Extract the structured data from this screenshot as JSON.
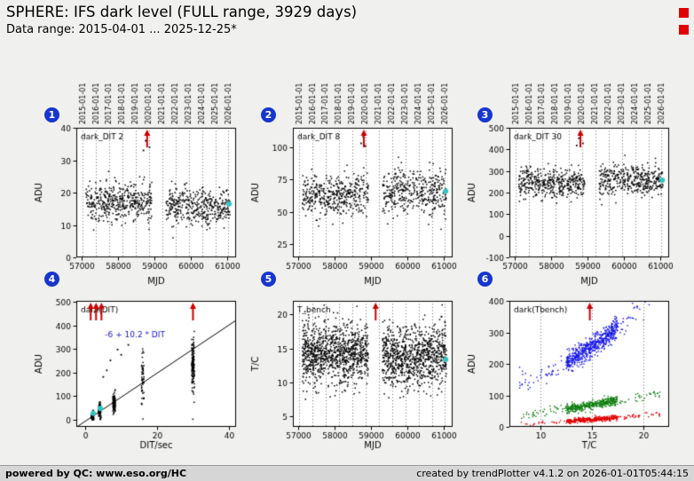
{
  "header": {
    "title": "SPHERE: IFS dark level (FULL range, 3929 days)",
    "subtitle": "Data range: 2015-04-01 ... 2025-12-25*"
  },
  "footer": {
    "left": "powered by QC: www.eso.org/HC",
    "right": "created by trendPlotter v4.1.2 on 2026-01-01T05:44:15"
  },
  "colors": {
    "background": "#f0f0ee",
    "footer_bg": "#d6d6d6",
    "badge": "#1736cf",
    "flag": "#e00000",
    "arrow": "#cc0000",
    "latest": "#2fc6c6",
    "point": "#000000",
    "annotation": "#1515cc"
  },
  "years": {
    "labels": [
      "2015-01-01",
      "2016-01-01",
      "2017-01-01",
      "2018-01-01",
      "2019-01-01",
      "2020-01-01",
      "2021-01-01",
      "2022-01-01",
      "2023-01-01",
      "2024-01-01",
      "2025-01-01",
      "2026-01-01"
    ],
    "mjd": [
      57023,
      57388,
      57754,
      58119,
      58484,
      58849,
      59215,
      59580,
      59945,
      60310,
      60676,
      61041
    ]
  },
  "chart_data": [
    {
      "id": 1,
      "badge": "1",
      "label": "dark_DIT 2",
      "type": "scatter",
      "xlabel": "MJD",
      "ylabel": "ADU",
      "xlim": [
        56850,
        61250
      ],
      "ylim": [
        0,
        40
      ],
      "xticks": [
        57000,
        58000,
        59000,
        60000,
        61000
      ],
      "yticks": [
        0,
        10,
        20,
        30,
        40
      ],
      "show_year_grid": true,
      "show_year_labels": true,
      "clusters": [
        {
          "x0": 57110,
          "x1": 58930,
          "mean": 17.2,
          "sd": 3.0,
          "n": 430
        },
        {
          "x0": 59320,
          "x1": 61080,
          "mean": 15.8,
          "sd": 2.9,
          "n": 400
        }
      ],
      "extra_points": [
        [
          58700,
          33
        ],
        [
          58760,
          36
        ],
        [
          58815,
          38
        ],
        [
          58865,
          34
        ]
      ],
      "arrows": [
        58800
      ],
      "latest": [
        [
          61060,
          16.5
        ]
      ]
    },
    {
      "id": 2,
      "badge": "2",
      "label": "dark_DIT 8",
      "type": "scatter",
      "xlabel": "MJD",
      "ylabel": "ADU",
      "xlim": [
        56850,
        61250
      ],
      "ylim": [
        15,
        115
      ],
      "xticks": [
        57000,
        58000,
        59000,
        60000,
        61000
      ],
      "yticks": [
        25,
        50,
        75,
        100
      ],
      "show_year_grid": true,
      "show_year_labels": true,
      "clusters": [
        {
          "x0": 57110,
          "x1": 58930,
          "mean": 63.5,
          "sd": 8.5,
          "n": 420
        },
        {
          "x0": 59320,
          "x1": 61080,
          "mean": 65.5,
          "sd": 9.0,
          "n": 390
        }
      ],
      "extra_points": [
        [
          58730,
          103
        ],
        [
          58790,
          108
        ],
        [
          58845,
          101
        ]
      ],
      "arrows": [
        58805
      ],
      "latest": [
        [
          61060,
          66
        ]
      ]
    },
    {
      "id": 3,
      "badge": "3",
      "label": "dark_DIT 30",
      "type": "scatter",
      "xlabel": "MJD",
      "ylabel": "ADU",
      "xlim": [
        56850,
        61250
      ],
      "ylim": [
        -100,
        500
      ],
      "xticks": [
        57000,
        58000,
        59000,
        60000,
        61000
      ],
      "yticks": [
        -100,
        0,
        100,
        200,
        300,
        400,
        500
      ],
      "show_year_grid": true,
      "show_year_labels": true,
      "clusters": [
        {
          "x0": 57110,
          "x1": 58930,
          "mean": 243,
          "sd": 33,
          "n": 420
        },
        {
          "x0": 59320,
          "x1": 61080,
          "mean": 256,
          "sd": 35,
          "n": 390
        }
      ],
      "extra_points": [
        [
          58705,
          418
        ],
        [
          58765,
          452
        ],
        [
          58825,
          468
        ],
        [
          58875,
          428
        ]
      ],
      "arrows": [
        58805
      ],
      "latest": [
        [
          61060,
          258
        ]
      ]
    },
    {
      "id": 4,
      "badge": "4",
      "label": "dark(DIT)",
      "type": "scatter",
      "xlabel": "DIT/sec",
      "ylabel": "ADU",
      "xlim": [
        -2.5,
        42
      ],
      "ylim": [
        -30,
        505
      ],
      "xticks": [
        0,
        20,
        40
      ],
      "yticks": [
        0,
        100,
        200,
        300,
        400,
        500
      ],
      "dit_clusters": [
        {
          "x": 2,
          "n": 130,
          "mean": 16,
          "sd": 9
        },
        {
          "x": 4,
          "n": 90,
          "mean": 38,
          "sd": 16
        },
        {
          "x": 8,
          "n": 110,
          "mean": 72,
          "sd": 20
        },
        {
          "x": 16,
          "n": 55,
          "mean": 170,
          "sd": 55
        },
        {
          "x": 30,
          "n": 150,
          "mean": 225,
          "sd": 58
        }
      ],
      "extra_points": [
        [
          1.6,
          470
        ],
        [
          2.6,
          458
        ],
        [
          3.5,
          467
        ],
        [
          4.4,
          452
        ],
        [
          5,
          182
        ],
        [
          6,
          210
        ],
        [
          7,
          252
        ],
        [
          9,
          298
        ],
        [
          10,
          276
        ],
        [
          12,
          318
        ]
      ],
      "fit": {
        "slope": 10.2,
        "intercept": -6,
        "text": "-6 + 10.2 * DIT",
        "text_xy": [
          5.5,
          352
        ]
      },
      "arrows": [
        1.5,
        3,
        4.5,
        30
      ],
      "latest": [
        [
          2.2,
          27
        ],
        [
          4.2,
          48
        ]
      ]
    },
    {
      "id": 5,
      "badge": "5",
      "label": "T_bench",
      "type": "scatter",
      "xlabel": "MJD",
      "ylabel": "T/C",
      "xlim": [
        56850,
        61250
      ],
      "ylim": [
        3.5,
        22
      ],
      "xticks": [
        57000,
        58000,
        59000,
        60000,
        61000
      ],
      "yticks": [
        5,
        10,
        15,
        20
      ],
      "show_year_grid": true,
      "clusters": [
        {
          "x0": 57110,
          "x1": 58930,
          "mean": 14.2,
          "sd": 2.2,
          "n": 1000
        },
        {
          "x0": 59320,
          "x1": 61080,
          "mean": 13.8,
          "sd": 2.3,
          "n": 900
        }
      ],
      "arrows": [
        59130
      ],
      "latest": [
        [
          61060,
          13.4
        ]
      ]
    },
    {
      "id": 6,
      "badge": "6",
      "label": "dark(Tbench)",
      "type": "scatter",
      "xlabel": "T/C",
      "ylabel": "ADU",
      "xlim": [
        7,
        22.5
      ],
      "ylim": [
        0,
        400
      ],
      "xticks": [
        10,
        15,
        20
      ],
      "yticks": [
        0,
        100,
        200,
        300,
        400
      ],
      "grid_xticks": true,
      "series": [
        {
          "name": "blue",
          "color": "#1414e6",
          "n": 700,
          "x0": 8,
          "base": 140,
          "slope": 10,
          "quad": 0.9,
          "sd": 16,
          "xmin": 7.9,
          "xmax": 21.6,
          "dense": [
            12.5,
            17.5
          ],
          "dense_frac": 0.78
        },
        {
          "name": "green",
          "color": "#0a7d0a",
          "n": 460,
          "x0": 8,
          "base": 35,
          "slope": 4.5,
          "quad": 0.06,
          "sd": 7,
          "xmin": 7.9,
          "xmax": 21.6,
          "dense": [
            12.5,
            17.5
          ],
          "dense_frac": 0.78
        },
        {
          "name": "red",
          "color": "#e10000",
          "n": 420,
          "x0": 8,
          "base": 8,
          "slope": 2.0,
          "quad": 0.03,
          "sd": 3.5,
          "xmin": 7.9,
          "xmax": 21.6,
          "dense": [
            12.5,
            17.5
          ],
          "dense_frac": 0.78
        }
      ],
      "arrows": [
        14.8
      ]
    }
  ]
}
